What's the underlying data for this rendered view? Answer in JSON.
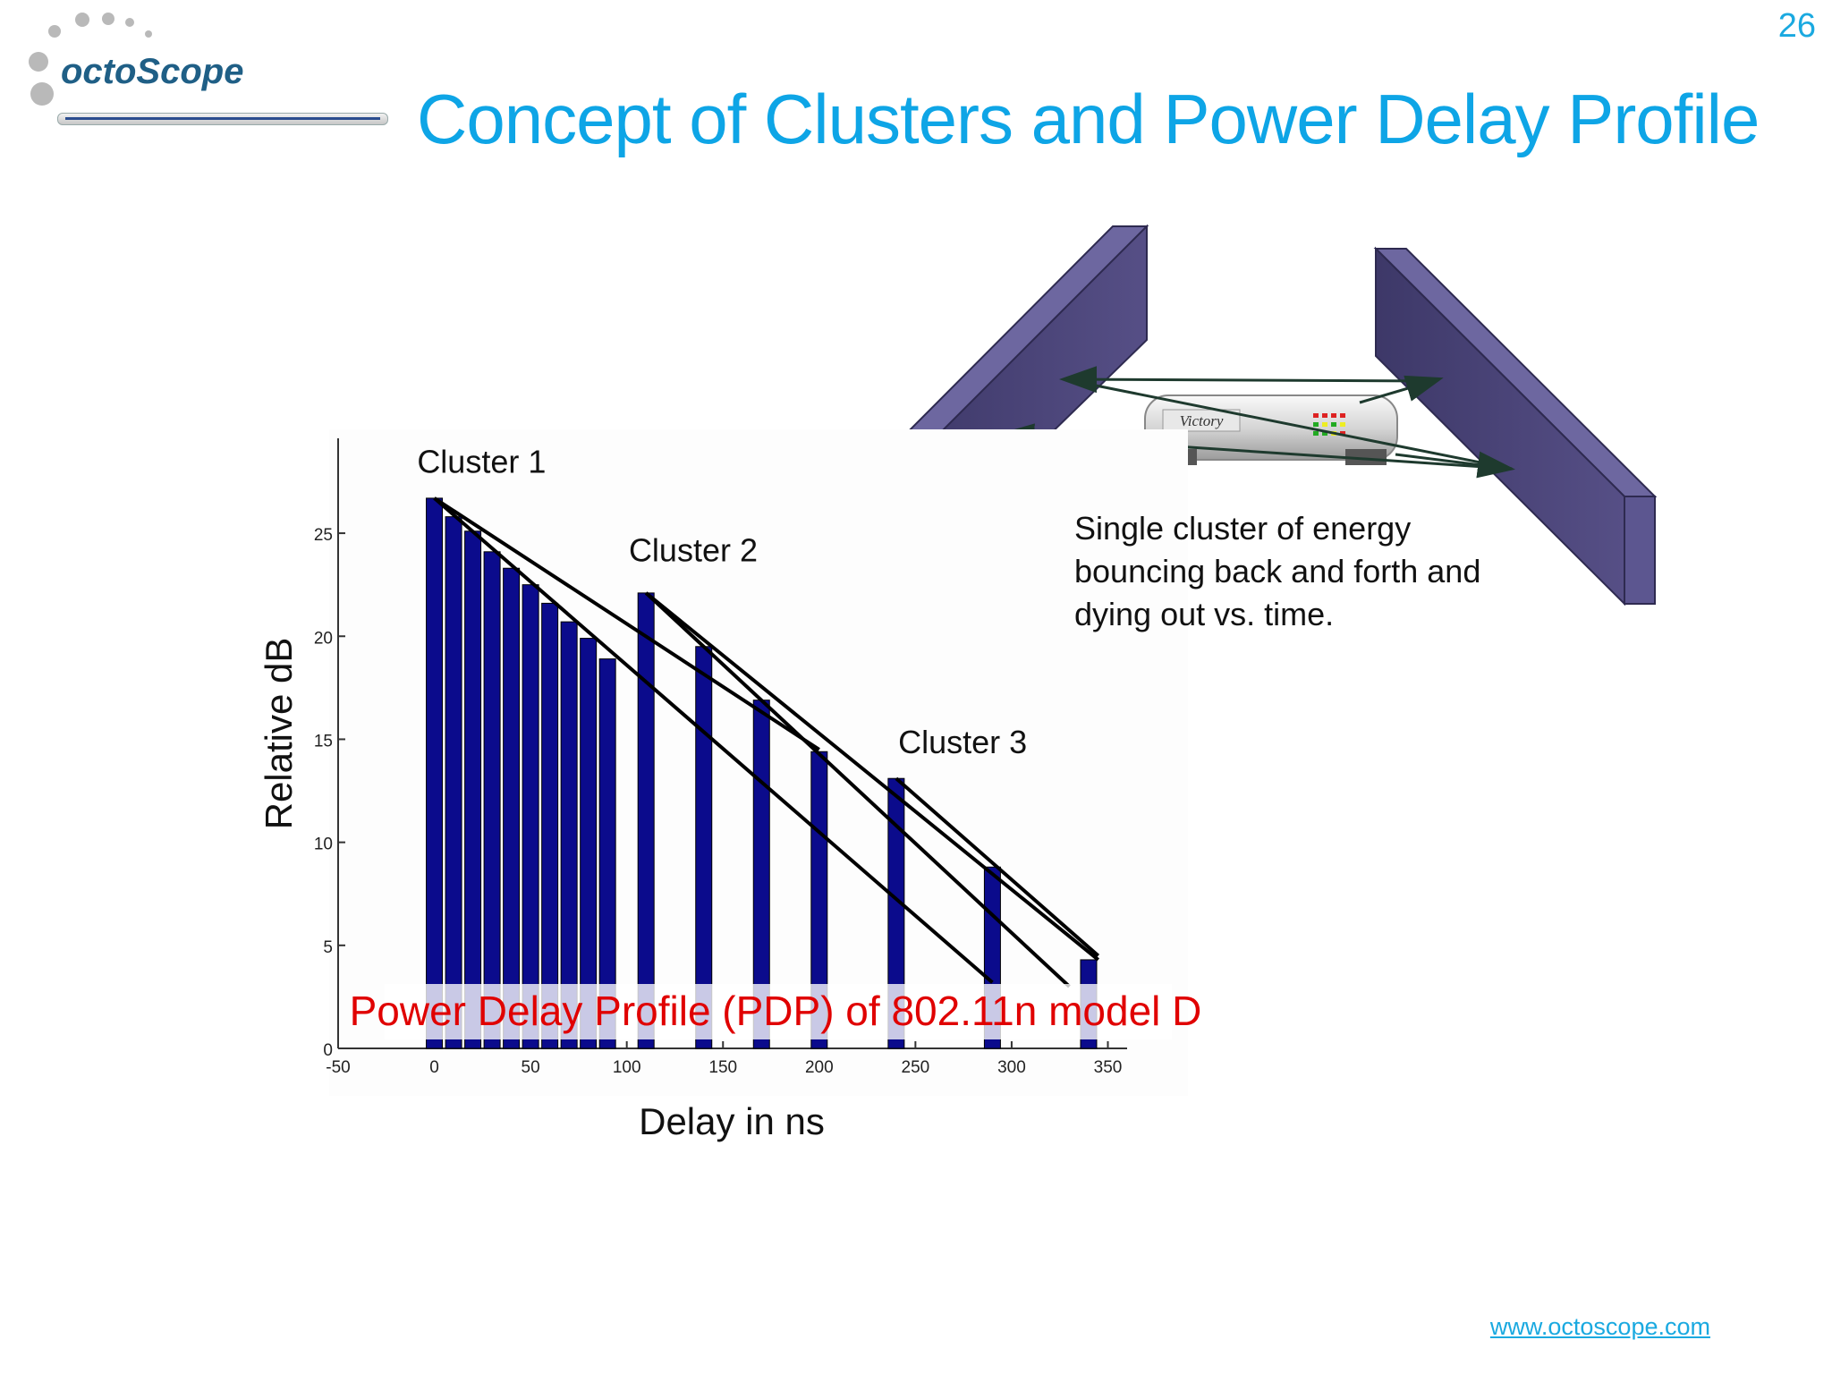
{
  "slide": {
    "number": "26",
    "title": "Concept of Clusters and Power Delay Profile",
    "logo_text": "octoScope",
    "footer_link": "www.octoscope.com",
    "description": [
      "Single cluster of energy",
      "bouncing back and forth and",
      "dying out vs. time."
    ],
    "router_label": "Victory"
  },
  "colors": {
    "title": "#0ea5e6",
    "bar": "#0b0b8c",
    "caption": "#e00000",
    "wall": "#4a4576"
  },
  "chart_data": {
    "type": "bar",
    "caption": "Power Delay Profile (PDP) of 802.11n model D",
    "xlabel": "Delay in ns",
    "ylabel": "Relative dB",
    "xlim": [
      -50,
      360
    ],
    "ylim": [
      0,
      27
    ],
    "xticks": [
      -50,
      0,
      50,
      100,
      150,
      200,
      250,
      300,
      350
    ],
    "yticks": [
      0,
      5,
      10,
      15,
      20,
      25
    ],
    "series": [
      {
        "x": [
          0,
          10,
          20,
          30,
          40,
          50,
          60,
          70,
          80,
          90,
          110,
          140,
          170,
          200,
          240,
          290,
          340
        ],
        "values": [
          26.7,
          25.8,
          25.1,
          24.1,
          23.3,
          22.5,
          21.6,
          20.7,
          19.9,
          18.9,
          22.1,
          19.5,
          16.9,
          14.4,
          13.1,
          8.8,
          4.3
        ]
      }
    ],
    "clusters": [
      {
        "label": "Cluster 1",
        "anchor_x": 5,
        "anchor_y": 27.5,
        "line": [
          [
            0,
            26.7
          ],
          [
            290,
            3.2
          ]
        ]
      },
      {
        "label": "Cluster 2",
        "anchor_x": 115,
        "anchor_y": 23.2,
        "line": [
          [
            110,
            22.1
          ],
          [
            330,
            3.0
          ]
        ]
      },
      {
        "label": "Cluster 3",
        "anchor_x": 255,
        "anchor_y": 13.9,
        "line": [
          [
            240,
            13.1
          ],
          [
            345,
            4.5
          ]
        ]
      }
    ],
    "cluster1_topline": [
      [
        0,
        26.7
      ],
      [
        200,
        14.5
      ]
    ],
    "cluster2_topline": [
      [
        110,
        22.1
      ],
      [
        345,
        4.3
      ]
    ]
  }
}
